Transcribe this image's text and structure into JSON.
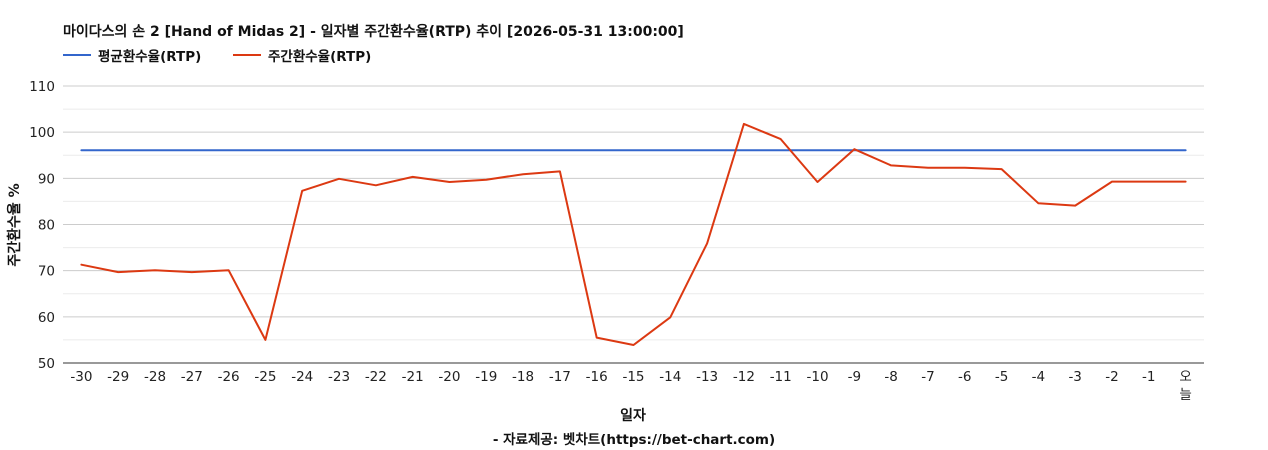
{
  "chart_data": {
    "type": "line",
    "title": "마이다스의 손 2 [Hand of Midas 2] - 일자별 주간환수율(RTP) 추이 [2026-05-31 13:00:00]",
    "xlabel": "일자",
    "ylabel": "주간환수율 %",
    "ylim": [
      50,
      110
    ],
    "yticks": [
      "50",
      "60",
      "70",
      "80",
      "90",
      "100",
      "110"
    ],
    "grid": true,
    "legend": "top-left",
    "categories": [
      "-30",
      "-29",
      "-28",
      "-27",
      "-26",
      "-25",
      "-24",
      "-23",
      "-22",
      "-21",
      "-20",
      "-19",
      "-18",
      "-17",
      "-16",
      "-15",
      "-14",
      "-13",
      "-12",
      "-11",
      "-10",
      "-9",
      "-8",
      "-7",
      "-6",
      "-5",
      "-4",
      "-3",
      "-2",
      "-1",
      "오늘"
    ],
    "series": [
      {
        "name": "평균환수율(RTP)",
        "color": "#3366cc",
        "values": [
          96.1,
          96.1,
          96.1,
          96.1,
          96.1,
          96.1,
          96.1,
          96.1,
          96.1,
          96.1,
          96.1,
          96.1,
          96.1,
          96.1,
          96.1,
          96.1,
          96.1,
          96.1,
          96.1,
          96.1,
          96.1,
          96.1,
          96.1,
          96.1,
          96.1,
          96.1,
          96.1,
          96.1,
          96.1,
          96.1,
          96.1
        ]
      },
      {
        "name": "주간환수율(RTP)",
        "color": "#dc3912",
        "values": [
          71.3,
          69.7,
          70.1,
          69.7,
          70.1,
          55.0,
          87.3,
          89.9,
          88.5,
          90.3,
          89.2,
          89.7,
          90.9,
          91.5,
          55.5,
          53.9,
          59.9,
          75.9,
          101.8,
          98.5,
          89.2,
          96.3,
          92.8,
          92.3,
          92.3,
          92.0,
          84.6,
          84.1,
          89.3,
          89.3,
          89.3
        ]
      }
    ]
  },
  "source": "- 자료제공: 벳차트(https://bet-chart.com)"
}
